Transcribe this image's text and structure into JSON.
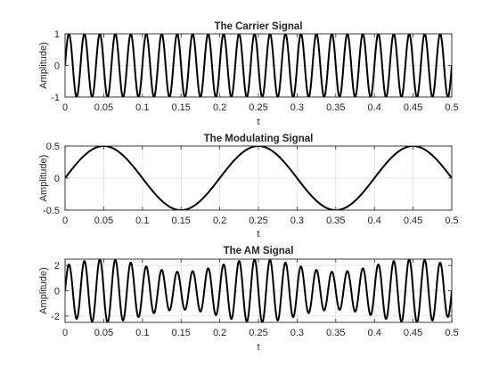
{
  "chart_data": [
    {
      "type": "line",
      "title": "The Carrier Signal",
      "xlabel": "t",
      "ylabel": "Amplitude)",
      "xlim": [
        0,
        0.5
      ],
      "ylim": [
        -1,
        1
      ],
      "xticks": [
        0,
        0.05,
        0.1,
        0.15,
        0.2,
        0.25,
        0.3,
        0.35,
        0.4,
        0.45,
        0.5
      ],
      "xticklabels": [
        "0",
        "0.05",
        "0.1",
        "0.15",
        "0.2",
        "0.25",
        "0.3",
        "0.35",
        "0.4",
        "0.45",
        "0.5"
      ],
      "yticks": [
        -1,
        0,
        1
      ],
      "yticklabels": [
        "-1",
        "0",
        "1"
      ],
      "grid": true,
      "series": [
        {
          "expression": "sin(2*pi*50*t)",
          "amplitude": 1,
          "frequency_hz": 50
        }
      ]
    },
    {
      "type": "line",
      "title": "The Modulating Signal",
      "xlabel": "t",
      "ylabel": "Amplitude)",
      "xlim": [
        0,
        0.5
      ],
      "ylim": [
        -0.5,
        0.5
      ],
      "xticks": [
        0,
        0.05,
        0.1,
        0.15,
        0.2,
        0.25,
        0.3,
        0.35,
        0.4,
        0.45,
        0.5
      ],
      "xticklabels": [
        "0",
        "0.05",
        "0.1",
        "0.15",
        "0.2",
        "0.25",
        "0.3",
        "0.35",
        "0.4",
        "0.45",
        "0.5"
      ],
      "yticks": [
        -0.5,
        0,
        0.5
      ],
      "yticklabels": [
        "-0.5",
        "0",
        "0.5"
      ],
      "grid": true,
      "series": [
        {
          "expression": "0.5*sin(2*pi*5*t)",
          "amplitude": 0.5,
          "frequency_hz": 5
        }
      ]
    },
    {
      "type": "line",
      "title": "The AM Signal",
      "xlabel": "t",
      "ylabel": "Amplitude)",
      "xlim": [
        0,
        0.5
      ],
      "ylim": [
        -2.5,
        2.5
      ],
      "xticks": [
        0,
        0.05,
        0.1,
        0.15,
        0.2,
        0.25,
        0.3,
        0.35,
        0.4,
        0.45,
        0.5
      ],
      "xticklabels": [
        "0",
        "0.05",
        "0.1",
        "0.15",
        "0.2",
        "0.25",
        "0.3",
        "0.35",
        "0.4",
        "0.45",
        "0.5"
      ],
      "yticks": [
        -2,
        0,
        2
      ],
      "yticklabels": [
        "-2",
        "0",
        "2"
      ],
      "grid": true,
      "series": [
        {
          "expression": "(2 + 0.5*sin(2*pi*5*t)) * sin(2*pi*50*t)",
          "carrier_amplitude": 2,
          "modulation_amplitude": 0.5,
          "carrier_frequency_hz": 50,
          "modulating_frequency_hz": 5
        }
      ]
    }
  ]
}
